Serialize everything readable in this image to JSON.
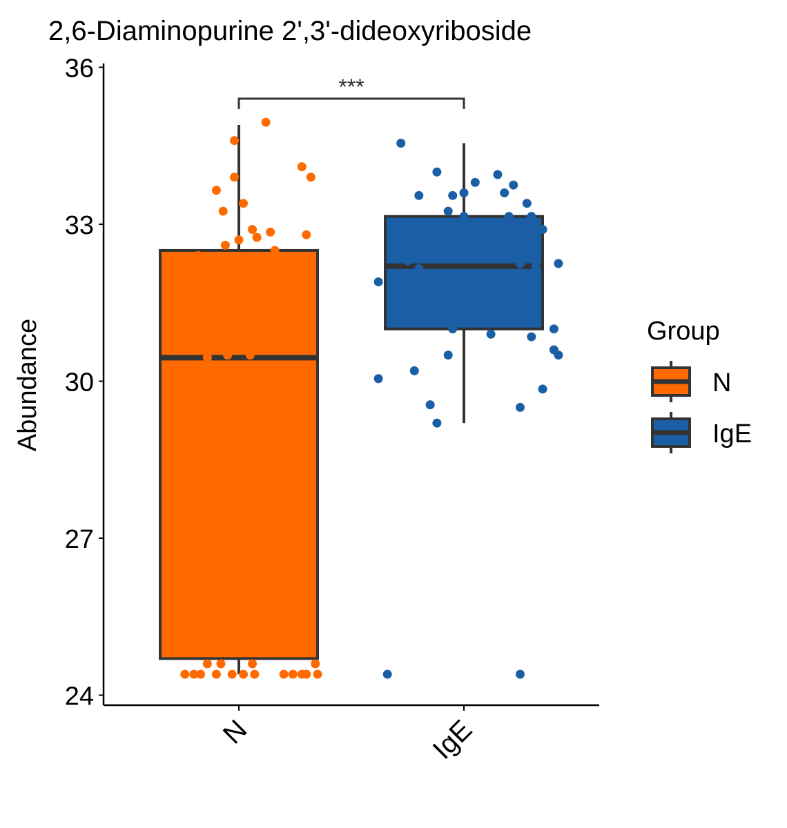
{
  "chart_data": {
    "type": "box",
    "title": "2,6-Diaminopurine 2',3'-dideoxyriboside",
    "xlabel": "",
    "ylabel": "Abundance",
    "ylim": [
      23.8,
      36.1
    ],
    "yticks": [
      24,
      27,
      30,
      33,
      36
    ],
    "categories": [
      "N",
      "IgE"
    ],
    "legend": {
      "title": "Group",
      "position": "right",
      "entries": [
        "N",
        "IgE"
      ]
    },
    "colors": {
      "N": "#ff6a00",
      "IgE": "#1a5fa6",
      "outline": "#333333",
      "axis": "#000000"
    },
    "significance": {
      "label": "***",
      "from": "N",
      "to": "IgE",
      "y": 35.4
    },
    "series": [
      {
        "name": "N",
        "box": {
          "whisker_low": 24.4,
          "q1": 24.7,
          "median": 30.45,
          "q3": 32.5,
          "whisker_high": 34.9
        },
        "points": [
          [
            0.76,
            24.4
          ],
          [
            0.8,
            24.4
          ],
          [
            0.83,
            24.4
          ],
          [
            0.86,
            24.6
          ],
          [
            0.9,
            24.4
          ],
          [
            0.92,
            24.6
          ],
          [
            0.97,
            24.4
          ],
          [
            1.02,
            24.4
          ],
          [
            1.06,
            24.6
          ],
          [
            1.07,
            24.4
          ],
          [
            1.2,
            24.4
          ],
          [
            1.24,
            24.4
          ],
          [
            1.28,
            24.4
          ],
          [
            1.3,
            24.4
          ],
          [
            1.34,
            24.6
          ],
          [
            1.35,
            24.4
          ],
          [
            0.8,
            30.6
          ],
          [
            0.86,
            30.45
          ],
          [
            0.95,
            30.5
          ],
          [
            1.05,
            30.5
          ],
          [
            1.28,
            30.3
          ],
          [
            0.82,
            32.4
          ],
          [
            0.94,
            32.6
          ],
          [
            1.0,
            32.7
          ],
          [
            1.06,
            32.9
          ],
          [
            1.08,
            32.75
          ],
          [
            1.14,
            32.85
          ],
          [
            1.16,
            32.5
          ],
          [
            1.3,
            32.8
          ],
          [
            0.9,
            33.65
          ],
          [
            0.93,
            33.25
          ],
          [
            0.98,
            33.9
          ],
          [
            1.02,
            33.4
          ],
          [
            0.98,
            34.6
          ],
          [
            1.12,
            34.95
          ],
          [
            1.28,
            34.1
          ],
          [
            1.32,
            33.9
          ]
        ]
      },
      {
        "name": "IgE",
        "box": {
          "whisker_low": 29.2,
          "q1": 31.0,
          "median": 32.2,
          "q3": 33.15,
          "whisker_high": 34.55
        },
        "points": [
          [
            1.66,
            24.4
          ],
          [
            2.25,
            24.4
          ],
          [
            1.85,
            29.55
          ],
          [
            1.88,
            29.2
          ],
          [
            2.25,
            29.5
          ],
          [
            2.35,
            29.85
          ],
          [
            1.62,
            30.05
          ],
          [
            1.78,
            30.2
          ],
          [
            1.93,
            30.5
          ],
          [
            2.12,
            30.9
          ],
          [
            2.4,
            30.6
          ],
          [
            2.42,
            30.5
          ],
          [
            2.3,
            30.85
          ],
          [
            1.95,
            31.0
          ],
          [
            2.4,
            31.0
          ],
          [
            1.62,
            31.9
          ],
          [
            1.75,
            32.3
          ],
          [
            1.8,
            32.15
          ],
          [
            2.25,
            32.25
          ],
          [
            2.32,
            32.2
          ],
          [
            2.42,
            32.25
          ],
          [
            1.7,
            33.0
          ],
          [
            1.93,
            33.25
          ],
          [
            2.0,
            33.15
          ],
          [
            2.2,
            33.15
          ],
          [
            2.3,
            33.15
          ],
          [
            2.35,
            32.9
          ],
          [
            1.72,
            34.55
          ],
          [
            1.8,
            33.55
          ],
          [
            1.88,
            34.0
          ],
          [
            1.95,
            33.55
          ],
          [
            2.0,
            33.6
          ],
          [
            2.05,
            33.8
          ],
          [
            2.15,
            33.95
          ],
          [
            2.18,
            33.6
          ],
          [
            2.22,
            33.75
          ],
          [
            2.28,
            33.4
          ]
        ]
      }
    ]
  }
}
